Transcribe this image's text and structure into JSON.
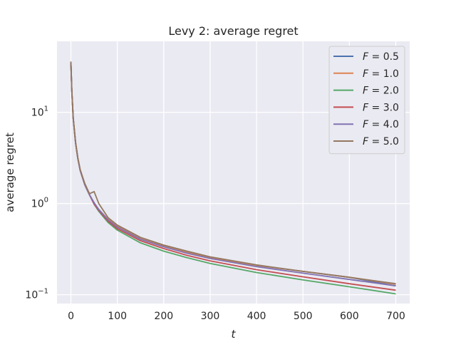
{
  "chart_data": {
    "type": "line",
    "title": "Levy 2: average regret",
    "xlabel": "t",
    "ylabel": "average regret",
    "xlim": [
      -30,
      730
    ],
    "ylim": [
      0.08,
      60
    ],
    "yscale": "log",
    "grid": true,
    "legend_position": "top-right",
    "xticks": [
      0,
      100,
      200,
      300,
      400,
      500,
      600,
      700
    ],
    "yticks": [
      {
        "value": 0.1,
        "base": "10",
        "exp": "−1"
      },
      {
        "value": 1,
        "base": "10",
        "exp": "0"
      },
      {
        "value": 10,
        "base": "10",
        "exp": "1"
      }
    ],
    "x": [
      0,
      2,
      5,
      10,
      15,
      20,
      30,
      40,
      50,
      60,
      80,
      100,
      150,
      200,
      250,
      300,
      400,
      500,
      600,
      700
    ],
    "series": [
      {
        "name": "F = 0.5",
        "legend_var": "F",
        "legend_value": "0.5",
        "color": "#4c72b0",
        "values": [
          35,
          17,
          8.5,
          4.6,
          3.1,
          2.3,
          1.6,
          1.25,
          1.0,
          0.86,
          0.67,
          0.56,
          0.41,
          0.34,
          0.29,
          0.255,
          0.21,
          0.18,
          0.155,
          0.125
        ]
      },
      {
        "name": "F = 1.0",
        "legend_var": "F",
        "legend_value": "1.0",
        "color": "#dd8452",
        "values": [
          35,
          17,
          8.5,
          4.6,
          3.1,
          2.3,
          1.6,
          1.25,
          1.0,
          0.86,
          0.67,
          0.56,
          0.41,
          0.34,
          0.29,
          0.255,
          0.21,
          0.18,
          0.155,
          0.13
        ]
      },
      {
        "name": "F = 2.0",
        "legend_var": "F",
        "legend_value": "2.0",
        "color": "#55a868",
        "values": [
          35,
          17,
          8.5,
          4.6,
          3.1,
          2.3,
          1.6,
          1.24,
          0.98,
          0.82,
          0.62,
          0.51,
          0.37,
          0.3,
          0.255,
          0.22,
          0.175,
          0.145,
          0.122,
          0.102
        ]
      },
      {
        "name": "F = 3.0",
        "legend_var": "F",
        "legend_value": "3.0",
        "color": "#c44e52",
        "values": [
          35,
          17,
          8.5,
          4.6,
          3.1,
          2.3,
          1.6,
          1.24,
          0.99,
          0.84,
          0.64,
          0.53,
          0.39,
          0.32,
          0.27,
          0.235,
          0.188,
          0.157,
          0.132,
          0.112
        ]
      },
      {
        "name": "F = 4.0",
        "legend_var": "F",
        "legend_value": "4.0",
        "color": "#8172b3",
        "values": [
          35,
          17,
          8.5,
          4.6,
          3.1,
          2.3,
          1.6,
          1.25,
          1.02,
          0.86,
          0.66,
          0.55,
          0.405,
          0.335,
          0.285,
          0.25,
          0.203,
          0.172,
          0.147,
          0.125
        ]
      },
      {
        "name": "F = 5.0",
        "legend_var": "F",
        "legend_value": "5.0",
        "color": "#937860",
        "values": [
          36,
          17.5,
          8.6,
          4.7,
          3.15,
          2.35,
          1.65,
          1.28,
          1.35,
          1.0,
          0.7,
          0.58,
          0.425,
          0.35,
          0.3,
          0.26,
          0.212,
          0.18,
          0.155,
          0.132
        ]
      }
    ]
  }
}
